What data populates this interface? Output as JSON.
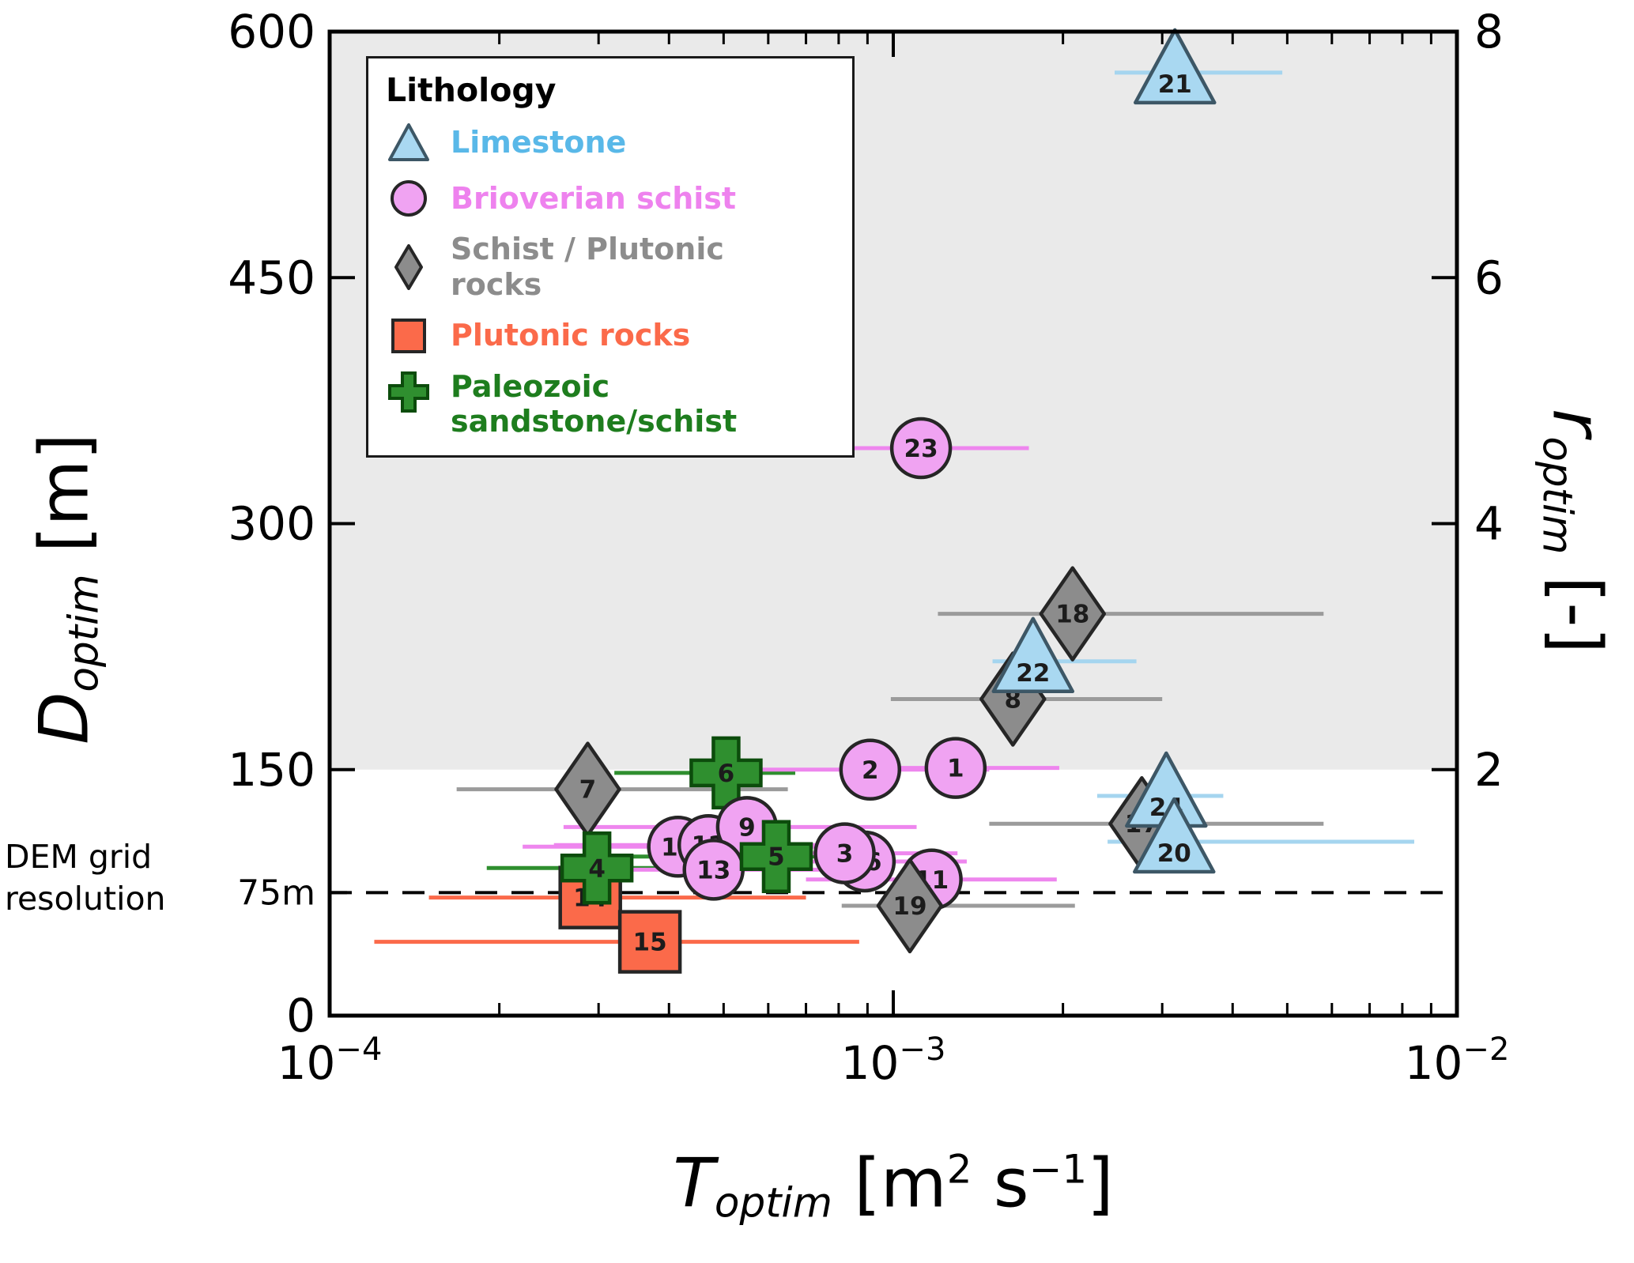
{
  "chart_data": {
    "type": "scatter",
    "x_axis": {
      "label_main": "T",
      "label_sub": "optim",
      "units_pre": " [m",
      "units_sup1": "2",
      "units_mid": " s",
      "units_sup2": "−1",
      "units_post": "]",
      "scale": "log",
      "min": 0.0001,
      "max": 0.01,
      "ticks": [
        {
          "value": 0.0001,
          "base": "10",
          "exp": "−4"
        },
        {
          "value": 0.001,
          "base": "10",
          "exp": "−3"
        },
        {
          "value": 0.01,
          "base": "10",
          "exp": "−2"
        }
      ]
    },
    "y_axis_left": {
      "label_main": "D",
      "label_sub": "optim",
      "label_units": " [m]",
      "min": 0,
      "max": 600,
      "ticks": [
        {
          "value": 600,
          "label": "600"
        },
        {
          "value": 450,
          "label": "450"
        },
        {
          "value": 300,
          "label": "300"
        },
        {
          "value": 150,
          "label": "150"
        },
        {
          "value": 75,
          "label": "75m",
          "small": true
        },
        {
          "value": 0,
          "label": "0"
        }
      ]
    },
    "y_axis_right": {
      "label_main": "r",
      "label_sub": "optim",
      "label_units": " [-]",
      "min": 0,
      "max": 8,
      "d_per_unit": 75,
      "ticks": [
        {
          "value": 8,
          "label": "8"
        },
        {
          "value": 6,
          "label": "6"
        },
        {
          "value": 4,
          "label": "4"
        },
        {
          "value": 2,
          "label": "2"
        }
      ]
    },
    "shaded_region": {
      "from": 150,
      "to": 600,
      "color": "#eaeaea"
    },
    "dashed_line": {
      "y": 75,
      "label": "DEM grid resolution"
    },
    "legend": {
      "title": "Lithology"
    },
    "marker_label_color": "#1c1c1c",
    "series": [
      {
        "key": "limestone",
        "label": "Limestone",
        "label_color": "#59b8e8",
        "marker": "triangle",
        "fill": "#a9d8f1",
        "edge": "#3d5766",
        "errbar_color": "#a5d5ef",
        "points": [
          {
            "id": "21",
            "T": 0.00316,
            "D": 575,
            "T_err": [
              0.00247,
              0.0049
            ]
          },
          {
            "id": "22",
            "T": 0.00177,
            "D": 216,
            "T_err": [
              0.0015,
              0.0027
            ]
          },
          {
            "id": "24",
            "T": 0.00305,
            "D": 134,
            "T_err": [
              0.0023,
              0.00385
            ]
          },
          {
            "id": "20",
            "T": 0.00315,
            "D": 106,
            "T_err": [
              0.0024,
              0.0084
            ]
          }
        ]
      },
      {
        "key": "brioverian",
        "label": "Brioverian schist",
        "label_color": "#ee82ee",
        "marker": "circle",
        "fill": "#f0a3f2",
        "edge": "#262626",
        "errbar_color": "#ee86ee",
        "points": [
          {
            "id": "23",
            "T": 0.00112,
            "D": 346,
            "T_err": [
              0.00076,
              0.00174
            ]
          },
          {
            "id": "2",
            "T": 0.00091,
            "D": 150,
            "T_err": [
              0.00055,
              0.00148
            ]
          },
          {
            "id": "1",
            "T": 0.00129,
            "D": 151,
            "T_err": [
              0.00084,
              0.00197
            ]
          },
          {
            "id": "9",
            "T": 0.00055,
            "D": 115,
            "T_err": [
              0.00026,
              0.0011
            ]
          },
          {
            "id": "10",
            "T": 0.000415,
            "D": 103,
            "T_err": [
              0.00022,
              0.0008
            ]
          },
          {
            "id": "12",
            "T": 0.00047,
            "D": 104,
            "T_err": [
              0.00025,
              0.0009
            ]
          },
          {
            "id": "13",
            "T": 0.00048,
            "D": 89,
            "T_err": [
              0.0003,
              0.00075
            ]
          },
          {
            "id": "16",
            "T": 0.00089,
            "D": 94,
            "T_err": [
              0.00055,
              0.00135
            ]
          },
          {
            "id": "3",
            "T": 0.00082,
            "D": 99,
            "T_err": [
              0.0005,
              0.0013
            ]
          },
          {
            "id": "11",
            "T": 0.00117,
            "D": 83,
            "T_err": [
              0.0007,
              0.00195
            ]
          }
        ]
      },
      {
        "key": "schist_plutonic",
        "label": "Schist / Plutonic rocks",
        "label_color": "#8c8c8c",
        "marker": "diamond",
        "fill": "#8c8c8c",
        "edge": "#262626",
        "errbar_color": "#9b9b9b",
        "points": [
          {
            "id": "7",
            "T": 0.000287,
            "D": 138,
            "T_err": [
              0.000168,
              0.00065
            ]
          },
          {
            "id": "8",
            "T": 0.00163,
            "D": 193,
            "T_err": [
              0.00099,
              0.003
            ]
          },
          {
            "id": "18",
            "T": 0.00208,
            "D": 245,
            "T_err": [
              0.0012,
              0.0058
            ]
          },
          {
            "id": "19",
            "T": 0.00107,
            "D": 67,
            "T_err": [
              0.00081,
              0.0021
            ]
          },
          {
            "id": "17",
            "T": 0.00276,
            "D": 117,
            "T_err": [
              0.00148,
              0.0058
            ]
          }
        ]
      },
      {
        "key": "plutonic",
        "label": "Plutonic rocks",
        "label_color": "#fb6a4a",
        "marker": "square",
        "fill": "#fb6a4a",
        "edge": "#262626",
        "errbar_color": "#fb6a4a",
        "points": [
          {
            "id": "14",
            "T": 0.00029,
            "D": 72,
            "T_err": [
              0.00015,
              0.0007
            ]
          },
          {
            "id": "15",
            "T": 0.00037,
            "D": 45,
            "T_err": [
              0.00012,
              0.00087
            ]
          }
        ]
      },
      {
        "key": "paleozoic",
        "label": "Paleozoic sandstone/schist",
        "label_color": "#1e7d1e",
        "marker": "plus",
        "fill": "#2f8f2f",
        "edge": "#0c4c0c",
        "errbar_color": "#2f8f2f",
        "points": [
          {
            "id": "6",
            "T": 0.000505,
            "D": 148,
            "T_err": [
              0.00032,
              0.00067
            ]
          },
          {
            "id": "5",
            "T": 0.00062,
            "D": 97,
            "T_err": [
              0.00034,
              0.00086
            ]
          },
          {
            "id": "4",
            "T": 0.000298,
            "D": 90,
            "T_err": [
              0.00019,
              0.00045
            ]
          }
        ]
      }
    ]
  }
}
